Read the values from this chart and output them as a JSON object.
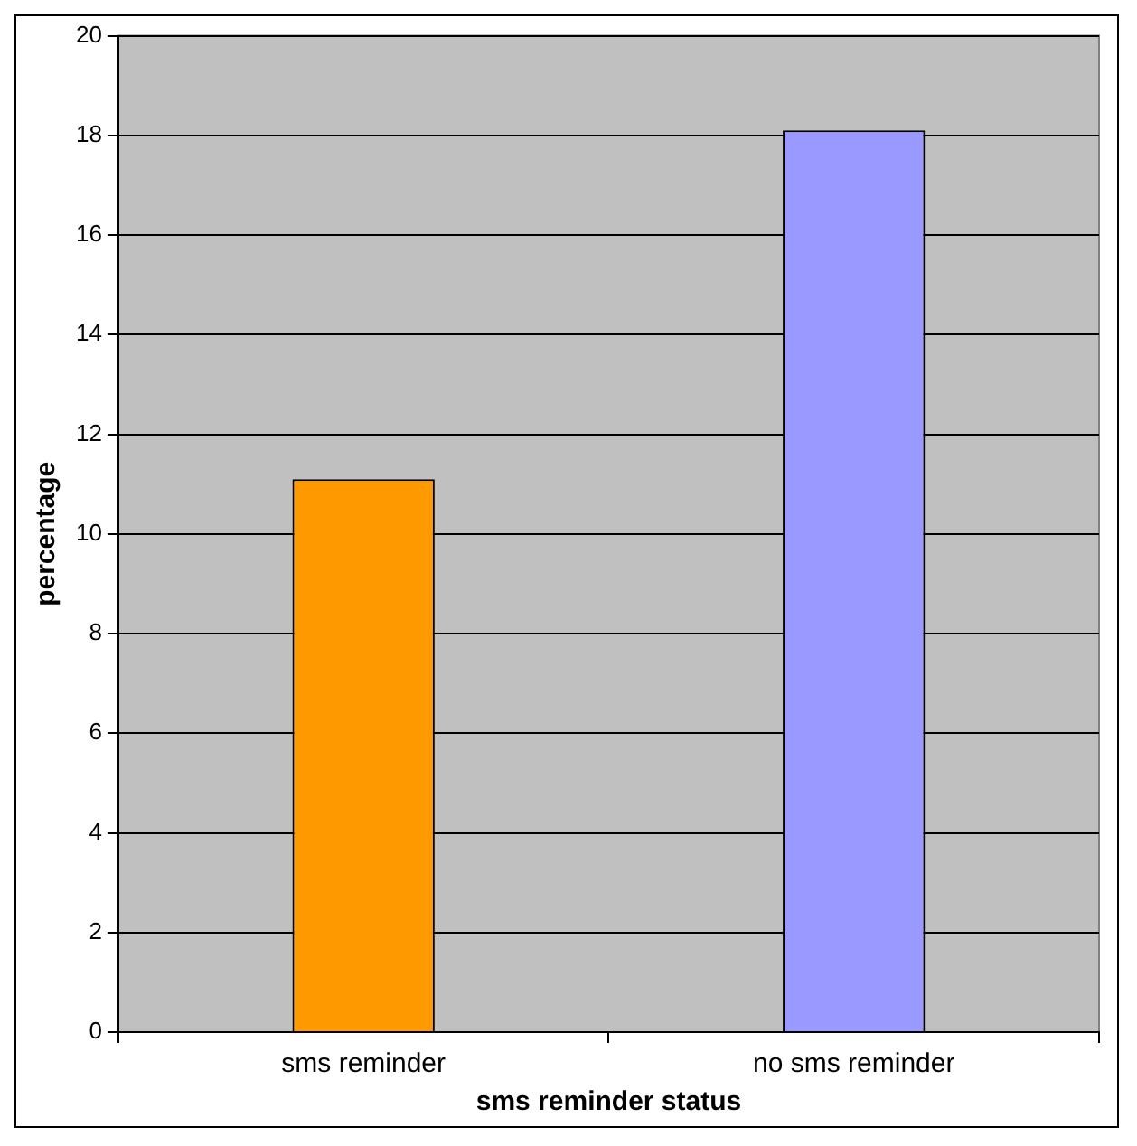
{
  "chart_data": {
    "type": "bar",
    "xlabel": "sms reminder status",
    "ylabel": "percentage",
    "categories": [
      "sms reminder",
      "no sms reminder"
    ],
    "values": [
      11.1,
      18.1
    ],
    "colors": [
      "#ff9900",
      "#9999ff"
    ],
    "ylim": [
      0,
      20
    ],
    "yticks": [
      0,
      2,
      4,
      6,
      8,
      10,
      12,
      14,
      16,
      18,
      20
    ],
    "grid": "y",
    "legend": false
  }
}
